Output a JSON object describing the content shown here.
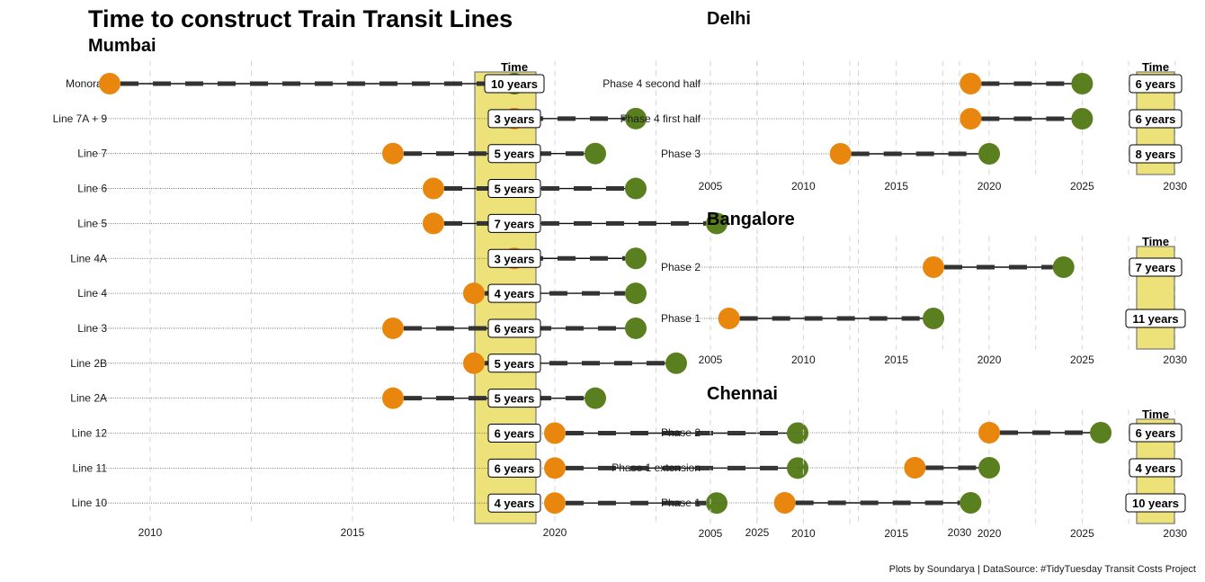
{
  "title": "Time to construct Train Transit Lines",
  "caption": "Plots by Soundarya | DataSource: #TidyTuesday Transit Costs Project",
  "time_header": "Time",
  "colors": {
    "start": "#E8860E",
    "end": "#5A7F1E",
    "band": "#EDE27A",
    "band_edge": "#777777"
  },
  "chart_data": [
    {
      "type": "dumbbell",
      "subtitle": "Mumbai",
      "xlim": [
        2007,
        2031
      ],
      "xticks": [
        2010,
        2015,
        2020,
        2025,
        2030
      ],
      "rows": [
        {
          "name": "Monorail",
          "start": 2009,
          "end": 2019,
          "label": "10 years"
        },
        {
          "name": "Line 7A + 9",
          "start": 2019,
          "end": 2022,
          "label": "3 years"
        },
        {
          "name": "Line 7",
          "start": 2016,
          "end": 2021,
          "label": "5 years"
        },
        {
          "name": "Line 6",
          "start": 2017,
          "end": 2022,
          "label": "5 years"
        },
        {
          "name": "Line 5",
          "start": 2017,
          "end": 2024,
          "label": "7 years"
        },
        {
          "name": "Line 4A",
          "start": 2019,
          "end": 2022,
          "label": "3 years"
        },
        {
          "name": "Line 4",
          "start": 2018,
          "end": 2022,
          "label": "4 years"
        },
        {
          "name": "Line 3",
          "start": 2016,
          "end": 2022,
          "label": "6 years"
        },
        {
          "name": "Line 2B",
          "start": 2018,
          "end": 2023,
          "label": "5 years"
        },
        {
          "name": "Line 2A",
          "start": 2016,
          "end": 2021,
          "label": "5 years"
        },
        {
          "name": "Line 12",
          "start": 2020,
          "end": 2026,
          "label": "6 years"
        },
        {
          "name": "Line 11",
          "start": 2020,
          "end": 2026,
          "label": "6 years"
        },
        {
          "name": "Line 10",
          "start": 2020,
          "end": 2024,
          "label": "4 years"
        }
      ]
    },
    {
      "type": "dumbbell",
      "subtitle": "Delhi",
      "xlim": [
        2005,
        2030
      ],
      "xticks": [
        2005,
        2010,
        2015,
        2020,
        2025,
        2030
      ],
      "rows": [
        {
          "name": "Phase 4 second half",
          "start": 2019,
          "end": 2025,
          "label": "6 years"
        },
        {
          "name": "Phase 4 first half",
          "start": 2019,
          "end": 2025,
          "label": "6 years"
        },
        {
          "name": "Phase 3",
          "start": 2012,
          "end": 2020,
          "label": "8 years"
        }
      ]
    },
    {
      "type": "dumbbell",
      "subtitle": "Bangalore",
      "xlim": [
        2005,
        2030
      ],
      "xticks": [
        2005,
        2010,
        2015,
        2020,
        2025,
        2030
      ],
      "rows": [
        {
          "name": "Phase 2",
          "start": 2017,
          "end": 2024,
          "label": "7 years"
        },
        {
          "name": "Phase 1",
          "start": 2006,
          "end": 2017,
          "label": "11 years"
        }
      ]
    },
    {
      "type": "dumbbell",
      "subtitle": "Chennai",
      "xlim": [
        2005,
        2030
      ],
      "xticks": [
        2005,
        2010,
        2015,
        2020,
        2025,
        2030
      ],
      "rows": [
        {
          "name": "Phase 2",
          "start": 2020,
          "end": 2026,
          "label": "6 years"
        },
        {
          "name": "Phase 1 extension",
          "start": 2016,
          "end": 2020,
          "label": "4 years"
        },
        {
          "name": "Phase 1",
          "start": 2009,
          "end": 2019,
          "label": "10 years"
        }
      ]
    }
  ]
}
